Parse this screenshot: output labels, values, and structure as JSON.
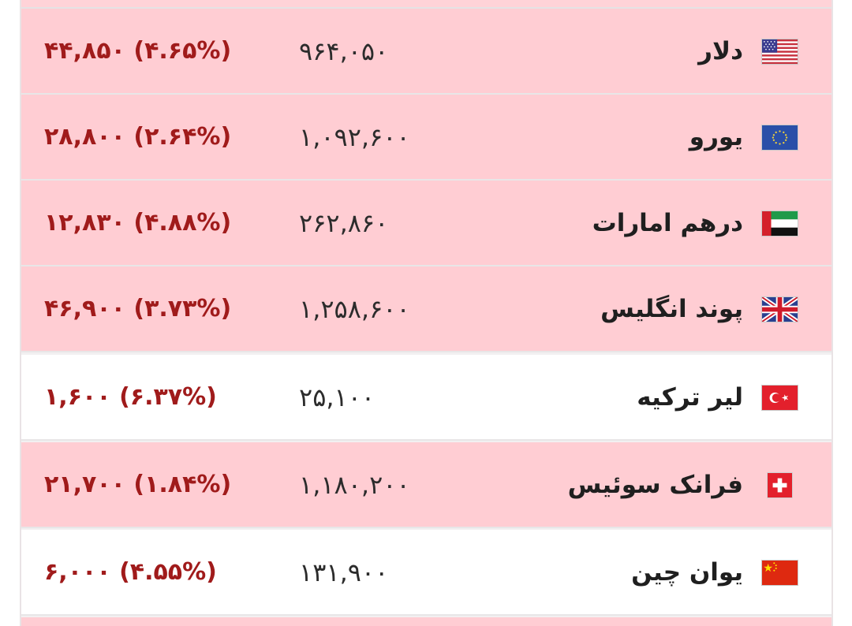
{
  "currencies": [
    {
      "flag": "us-flag-icon",
      "name": "دلار",
      "price": "۹۶۴,۰۵۰",
      "change": "۴۴,۸۵۰ (۴.۶۵%)",
      "trend": "neg"
    },
    {
      "flag": "eu-flag-icon",
      "name": "یورو",
      "price": "۱,۰۹۲,۶۰۰",
      "change": "۲۸,۸۰۰ (۲.۶۴%)",
      "trend": "neg"
    },
    {
      "flag": "uae-flag-icon",
      "name": "درهم امارات",
      "price": "۲۶۲,۸۶۰",
      "change": "۱۲,۸۳۰ (۴.۸۸%)",
      "trend": "neg"
    },
    {
      "flag": "uk-flag-icon",
      "name": "پوند انگلیس",
      "price": "۱,۲۵۸,۶۰۰",
      "change": "۴۶,۹۰۰ (۳.۷۳%)",
      "trend": "neg"
    },
    {
      "flag": "turkey-flag-icon",
      "name": "لیر ترکیه",
      "price": "۲۵,۱۰۰",
      "change": "۱,۶۰۰ (۶.۳۷%)",
      "trend": "pos"
    },
    {
      "flag": "swiss-flag-icon",
      "name": "فرانک سوئیس",
      "price": "۱,۱۸۰,۲۰۰",
      "change": "۲۱,۷۰۰ (۱.۸۴%)",
      "trend": "neg"
    },
    {
      "flag": "china-flag-icon",
      "name": "یوان چین",
      "price": "۱۳۱,۹۰۰",
      "change": "۶,۰۰۰ (۴.۵۵%)",
      "trend": "pos"
    }
  ],
  "colors": {
    "negative_row": "#ffcdd3",
    "positive_row": "#ffffff",
    "change_text": "#a01b1b"
  }
}
